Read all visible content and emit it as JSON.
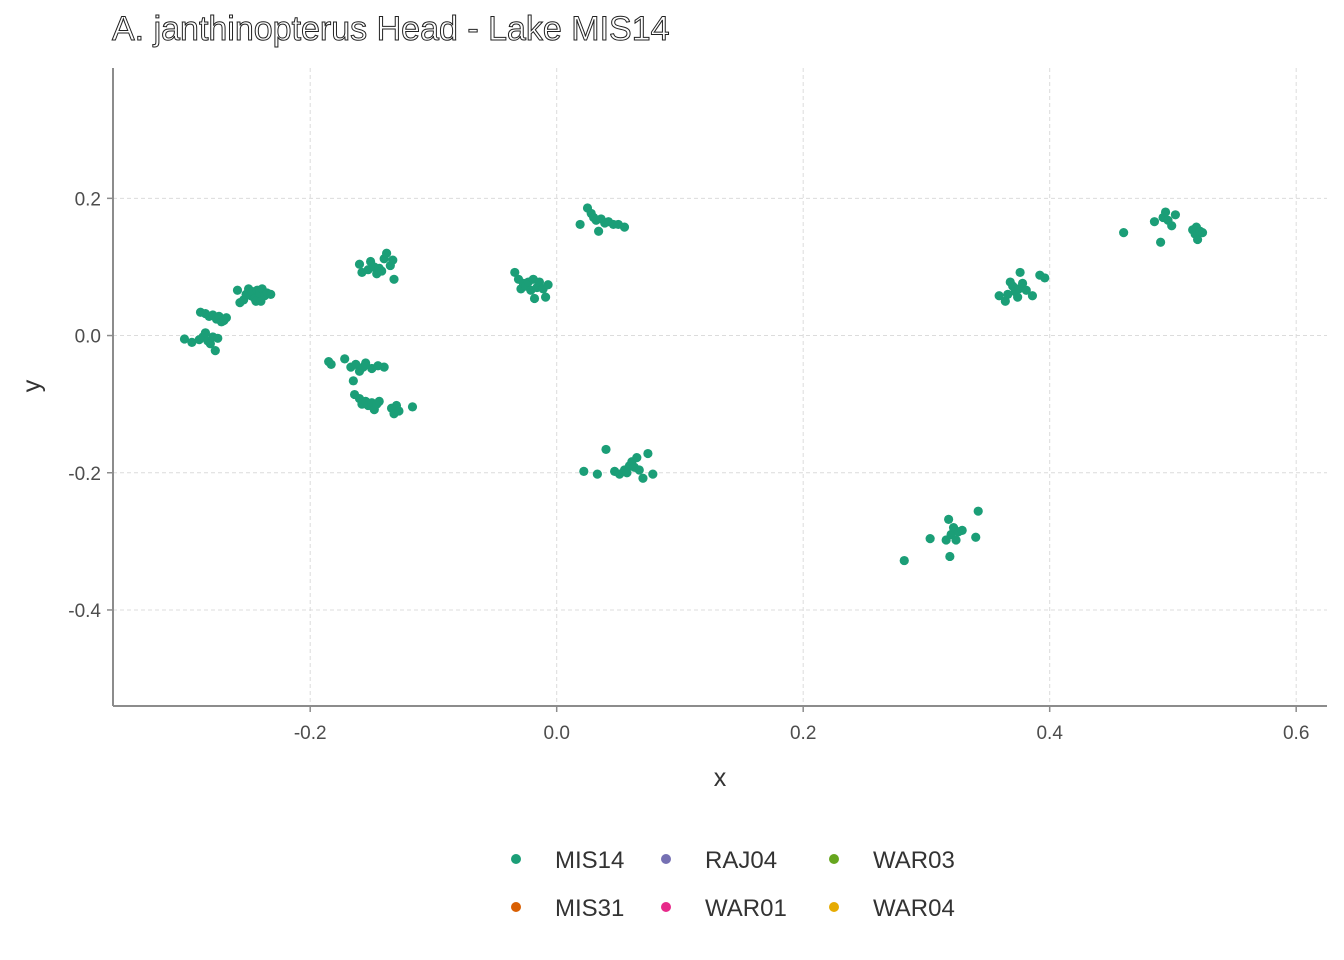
{
  "chart_data": {
    "type": "scatter",
    "title": "A. janthinopterus Head - Lake MIS14",
    "xlabel": "x",
    "ylabel": "y",
    "xlim": [
      -0.36,
      0.625
    ],
    "ylim": [
      -0.54,
      0.39
    ],
    "x_ticks": [
      -0.2,
      0.0,
      0.2,
      0.4,
      0.6
    ],
    "x_tick_labels": [
      "-0.2",
      "0.0",
      "0.2",
      "0.4",
      "0.6"
    ],
    "y_ticks": [
      0.2,
      0.0,
      -0.2,
      -0.4
    ],
    "y_tick_labels": [
      "0.2",
      "0.0",
      "-0.2",
      "-0.4"
    ],
    "grid": true,
    "legend_position": "bottom",
    "legend": [
      {
        "name": "MIS14",
        "color": "#1B9E77"
      },
      {
        "name": "MIS31",
        "color": "#D95F02"
      },
      {
        "name": "RAJ04",
        "color": "#7570B3"
      },
      {
        "name": "WAR01",
        "color": "#E7298A"
      },
      {
        "name": "WAR03",
        "color": "#66A61E"
      },
      {
        "name": "WAR04",
        "color": "#E6AB02"
      }
    ],
    "series": [
      {
        "name": "MIS14",
        "color": "#1B9E77",
        "points": [
          [
            -0.302,
            -0.005
          ],
          [
            -0.296,
            -0.01
          ],
          [
            -0.29,
            -0.006
          ],
          [
            -0.287,
            -0.002
          ],
          [
            -0.285,
            0.004
          ],
          [
            -0.283,
            -0.008
          ],
          [
            -0.281,
            -0.012
          ],
          [
            -0.279,
            -0.002
          ],
          [
            -0.277,
            -0.022
          ],
          [
            -0.275,
            -0.004
          ],
          [
            -0.289,
            0.034
          ],
          [
            -0.285,
            0.032
          ],
          [
            -0.282,
            0.028
          ],
          [
            -0.279,
            0.03
          ],
          [
            -0.276,
            0.024
          ],
          [
            -0.274,
            0.028
          ],
          [
            -0.272,
            0.02
          ],
          [
            -0.27,
            0.022
          ],
          [
            -0.268,
            0.026
          ],
          [
            -0.259,
            0.066
          ],
          [
            -0.257,
            0.048
          ],
          [
            -0.254,
            0.052
          ],
          [
            -0.252,
            0.06
          ],
          [
            -0.25,
            0.068
          ],
          [
            -0.248,
            0.058
          ],
          [
            -0.247,
            0.064
          ],
          [
            -0.245,
            0.054
          ],
          [
            -0.244,
            0.05
          ],
          [
            -0.243,
            0.066
          ],
          [
            -0.241,
            0.062
          ],
          [
            -0.24,
            0.05
          ],
          [
            -0.239,
            0.068
          ],
          [
            -0.237,
            0.058
          ],
          [
            -0.235,
            0.062
          ],
          [
            -0.232,
            0.06
          ],
          [
            -0.16,
            0.104
          ],
          [
            -0.158,
            0.092
          ],
          [
            -0.153,
            0.096
          ],
          [
            -0.151,
            0.108
          ],
          [
            -0.148,
            0.1
          ],
          [
            -0.146,
            0.09
          ],
          [
            -0.144,
            0.098
          ],
          [
            -0.142,
            0.094
          ],
          [
            -0.14,
            0.112
          ],
          [
            -0.138,
            0.12
          ],
          [
            -0.135,
            0.102
          ],
          [
            -0.133,
            0.11
          ],
          [
            -0.132,
            0.082
          ],
          [
            -0.185,
            -0.038
          ],
          [
            -0.183,
            -0.042
          ],
          [
            -0.172,
            -0.034
          ],
          [
            -0.167,
            -0.046
          ],
          [
            -0.163,
            -0.042
          ],
          [
            -0.16,
            -0.052
          ],
          [
            -0.157,
            -0.046
          ],
          [
            -0.155,
            -0.04
          ],
          [
            -0.15,
            -0.048
          ],
          [
            -0.145,
            -0.044
          ],
          [
            -0.14,
            -0.046
          ],
          [
            -0.165,
            -0.066
          ],
          [
            -0.164,
            -0.086
          ],
          [
            -0.16,
            -0.092
          ],
          [
            -0.158,
            -0.1
          ],
          [
            -0.155,
            -0.096
          ],
          [
            -0.153,
            -0.102
          ],
          [
            -0.15,
            -0.098
          ],
          [
            -0.148,
            -0.108
          ],
          [
            -0.146,
            -0.1
          ],
          [
            -0.144,
            -0.096
          ],
          [
            -0.134,
            -0.106
          ],
          [
            -0.132,
            -0.114
          ],
          [
            -0.13,
            -0.102
          ],
          [
            -0.128,
            -0.11
          ],
          [
            -0.117,
            -0.104
          ],
          [
            -0.034,
            0.092
          ],
          [
            -0.031,
            0.082
          ],
          [
            -0.029,
            0.068
          ],
          [
            -0.027,
            0.076
          ],
          [
            -0.025,
            0.072
          ],
          [
            -0.023,
            0.078
          ],
          [
            -0.021,
            0.066
          ],
          [
            -0.019,
            0.082
          ],
          [
            -0.018,
            0.054
          ],
          [
            -0.016,
            0.07
          ],
          [
            -0.014,
            0.078
          ],
          [
            -0.011,
            0.068
          ],
          [
            -0.009,
            0.056
          ],
          [
            -0.007,
            0.074
          ],
          [
            0.019,
            0.162
          ],
          [
            0.025,
            0.186
          ],
          [
            0.028,
            0.178
          ],
          [
            0.03,
            0.172
          ],
          [
            0.032,
            0.168
          ],
          [
            0.034,
            0.152
          ],
          [
            0.036,
            0.17
          ],
          [
            0.039,
            0.164
          ],
          [
            0.042,
            0.166
          ],
          [
            0.046,
            0.162
          ],
          [
            0.05,
            0.162
          ],
          [
            0.055,
            0.158
          ],
          [
            0.022,
            -0.198
          ],
          [
            0.033,
            -0.202
          ],
          [
            0.04,
            -0.166
          ],
          [
            0.047,
            -0.198
          ],
          [
            0.051,
            -0.202
          ],
          [
            0.055,
            -0.196
          ],
          [
            0.057,
            -0.2
          ],
          [
            0.059,
            -0.19
          ],
          [
            0.061,
            -0.184
          ],
          [
            0.063,
            -0.192
          ],
          [
            0.065,
            -0.178
          ],
          [
            0.067,
            -0.196
          ],
          [
            0.07,
            -0.208
          ],
          [
            0.074,
            -0.172
          ],
          [
            0.078,
            -0.202
          ],
          [
            0.282,
            -0.328
          ],
          [
            0.303,
            -0.296
          ],
          [
            0.316,
            -0.298
          ],
          [
            0.318,
            -0.268
          ],
          [
            0.319,
            -0.322
          ],
          [
            0.32,
            -0.29
          ],
          [
            0.322,
            -0.28
          ],
          [
            0.324,
            -0.298
          ],
          [
            0.326,
            -0.286
          ],
          [
            0.329,
            -0.284
          ],
          [
            0.34,
            -0.294
          ],
          [
            0.342,
            -0.256
          ],
          [
            0.359,
            0.058
          ],
          [
            0.364,
            0.05
          ],
          [
            0.366,
            0.06
          ],
          [
            0.368,
            0.078
          ],
          [
            0.37,
            0.072
          ],
          [
            0.372,
            0.064
          ],
          [
            0.374,
            0.056
          ],
          [
            0.375,
            0.068
          ],
          [
            0.376,
            0.092
          ],
          [
            0.378,
            0.076
          ],
          [
            0.381,
            0.066
          ],
          [
            0.386,
            0.058
          ],
          [
            0.392,
            0.088
          ],
          [
            0.396,
            0.084
          ],
          [
            0.46,
            0.15
          ],
          [
            0.485,
            0.166
          ],
          [
            0.49,
            0.136
          ],
          [
            0.492,
            0.172
          ],
          [
            0.494,
            0.18
          ],
          [
            0.496,
            0.168
          ],
          [
            0.499,
            0.16
          ],
          [
            0.502,
            0.176
          ],
          [
            0.516,
            0.154
          ],
          [
            0.518,
            0.148
          ],
          [
            0.519,
            0.158
          ],
          [
            0.52,
            0.14
          ],
          [
            0.522,
            0.152
          ],
          [
            0.524,
            0.15
          ]
        ]
      }
    ]
  }
}
